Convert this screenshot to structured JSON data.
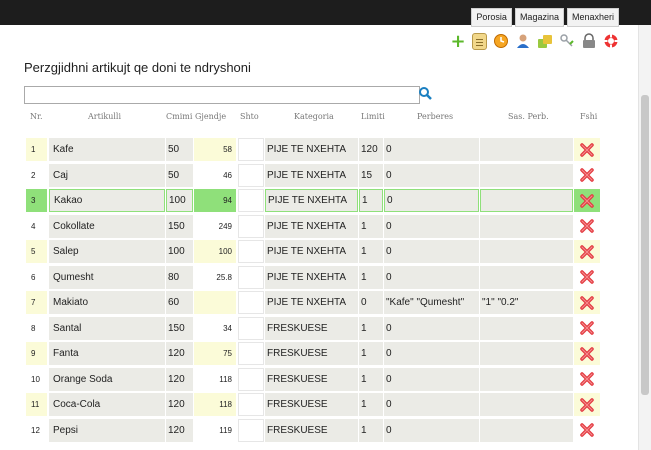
{
  "nav": {
    "tabs": [
      "Porosia",
      "Magazina",
      "Menaxheri"
    ]
  },
  "toolbar": {
    "icons": [
      "plus-icon",
      "clipboard-icon",
      "clock-icon",
      "user-icon",
      "users-icon",
      "key-icon",
      "lock-icon",
      "lifebuoy-icon"
    ]
  },
  "page": {
    "title": "Perzgjidhni artikujt qe doni te ndryshoni"
  },
  "search": {
    "placeholder": ""
  },
  "table": {
    "headers": [
      "Nr.",
      "Artikulli",
      "Cmimi",
      "Gjendje",
      "Shto",
      "Kategoria",
      "Limiti",
      "Perberes",
      "Sas. Perb.",
      "Fshi"
    ],
    "rows": [
      {
        "nr": "1",
        "name": "Kafe",
        "price": "50",
        "stock": "58",
        "category": "PIJE TE NXEHTA",
        "limit": "120",
        "ingredients": "0",
        "qty": ""
      },
      {
        "nr": "2",
        "name": "Caj",
        "price": "50",
        "stock": "46",
        "category": "PIJE TE NXEHTA",
        "limit": "15",
        "ingredients": "0",
        "qty": ""
      },
      {
        "nr": "3",
        "name": "Kakao",
        "price": "100",
        "stock": "94",
        "category": "PIJE TE NXEHTA",
        "limit": "1",
        "ingredients": "0",
        "qty": ""
      },
      {
        "nr": "4",
        "name": "Cokollate",
        "price": "150",
        "stock": "249",
        "category": "PIJE TE NXEHTA",
        "limit": "1",
        "ingredients": "0",
        "qty": ""
      },
      {
        "nr": "5",
        "name": "Salep",
        "price": "100",
        "stock": "100",
        "category": "PIJE TE NXEHTA",
        "limit": "1",
        "ingredients": "0",
        "qty": ""
      },
      {
        "nr": "6",
        "name": "Qumesht",
        "price": "80",
        "stock": "25.8",
        "category": "PIJE TE NXEHTA",
        "limit": "1",
        "ingredients": "0",
        "qty": ""
      },
      {
        "nr": "7",
        "name": "Makiato",
        "price": "60",
        "stock": "",
        "category": "PIJE TE NXEHTA",
        "limit": "0",
        "ingredients": "\"Kafe\" \"Qumesht\"",
        "qty": "\"1\" \"0.2\""
      },
      {
        "nr": "8",
        "name": "Santal",
        "price": "150",
        "stock": "34",
        "category": "FRESKUESE",
        "limit": "1",
        "ingredients": "0",
        "qty": ""
      },
      {
        "nr": "9",
        "name": "Fanta",
        "price": "120",
        "stock": "75",
        "category": "FRESKUESE",
        "limit": "1",
        "ingredients": "0",
        "qty": ""
      },
      {
        "nr": "10",
        "name": "Orange Soda",
        "price": "120",
        "stock": "118",
        "category": "FRESKUESE",
        "limit": "1",
        "ingredients": "0",
        "qty": ""
      },
      {
        "nr": "11",
        "name": "Coca-Cola",
        "price": "120",
        "stock": "118",
        "category": "FRESKUESE",
        "limit": "1",
        "ingredients": "0",
        "qty": ""
      },
      {
        "nr": "12",
        "name": "Pepsi",
        "price": "120",
        "stock": "119",
        "category": "FRESKUESE",
        "limit": "1",
        "ingredients": "0",
        "qty": ""
      }
    ]
  },
  "colors": {
    "highlight": "#8fe07a",
    "yellow": "#fbfbd8",
    "cell": "#ebebe6",
    "search_icon": "#1a7fc1",
    "delete_icon": "#e2393f"
  }
}
